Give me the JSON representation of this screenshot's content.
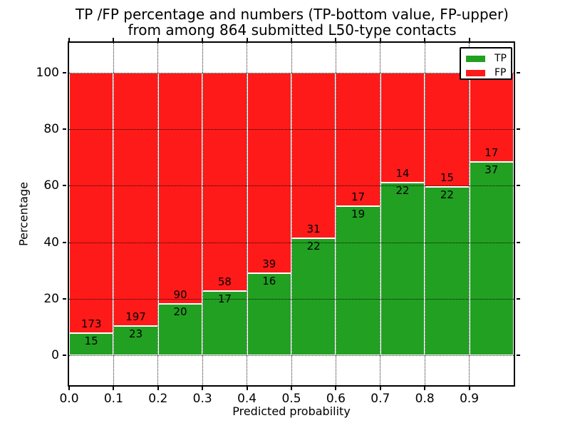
{
  "title": {
    "line1": "TP /FP percentage and numbers (TP-bottom value, FP-upper)",
    "line2": "from among 864 submitted L50-type contacts"
  },
  "axes": {
    "xlabel": "Predicted probability",
    "ylabel": "Percentage",
    "x_tick_labels": [
      "0.0",
      "0.1",
      "0.2",
      "0.3",
      "0.4",
      "0.5",
      "0.6",
      "0.7",
      "0.8",
      "0.9"
    ],
    "y_tick_values": [
      0,
      20,
      40,
      60,
      80,
      100
    ],
    "y_tick_labels": [
      "0",
      "20",
      "40",
      "60",
      "80",
      "100"
    ],
    "xlim": [
      0.0,
      1.0
    ],
    "ylim": [
      -10.5,
      110.5
    ],
    "grid": "dotted"
  },
  "legend": {
    "position": "upper right",
    "entries": [
      {
        "label": "TP",
        "color": "#22a022"
      },
      {
        "label": "FP",
        "color": "#ff1a1a"
      }
    ]
  },
  "colors": {
    "tp": "#22a022",
    "fp": "#ff1a1a",
    "frame": "#000000",
    "background": "#ffffff",
    "text": "#000000"
  },
  "chart_data": {
    "type": "bar",
    "stacked": true,
    "normalized_to_percent": 100,
    "total_contacts": 864,
    "bin_ranges": [
      "0.0-0.1",
      "0.1-0.2",
      "0.2-0.3",
      "0.3-0.4",
      "0.4-0.5",
      "0.5-0.6",
      "0.6-0.7",
      "0.7-0.8",
      "0.8-0.9",
      "0.9-1.0"
    ],
    "series": [
      {
        "name": "TP",
        "counts": [
          15,
          23,
          20,
          17,
          16,
          22,
          19,
          22,
          22,
          37
        ]
      },
      {
        "name": "FP",
        "counts": [
          173,
          197,
          90,
          58,
          39,
          31,
          17,
          14,
          15,
          17
        ]
      }
    ],
    "tp_percent": [
      8.0,
      10.5,
      18.2,
      22.7,
      29.1,
      41.5,
      52.8,
      61.1,
      59.5,
      68.5
    ]
  }
}
